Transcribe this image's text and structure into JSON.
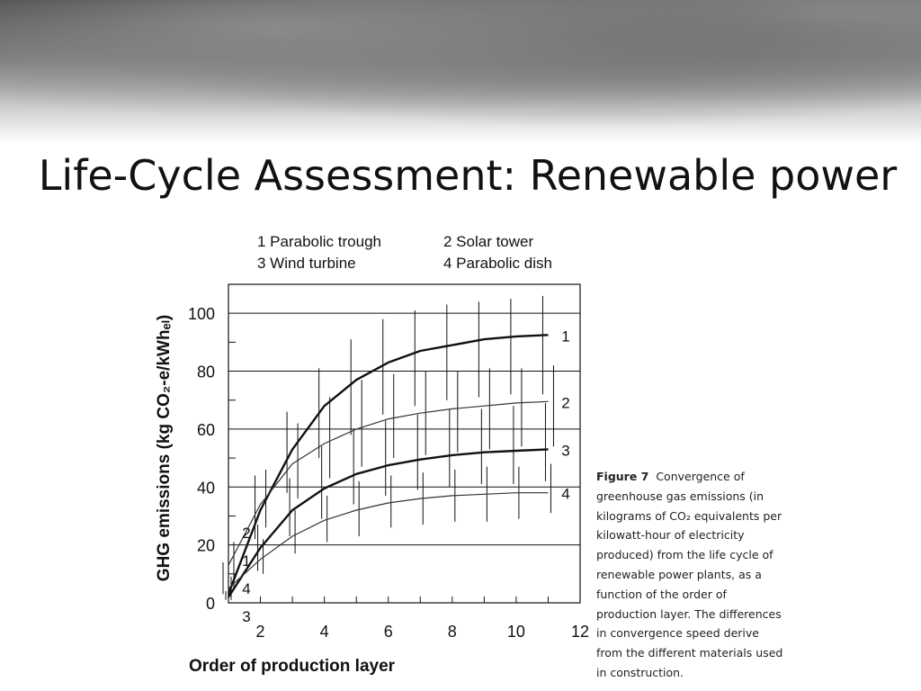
{
  "slide": {
    "title": "Life-Cycle Assessment: Renewable power"
  },
  "legend": [
    {
      "id": "1",
      "label": "1 Parabolic trough"
    },
    {
      "id": "2",
      "label": "2 Solar tower"
    },
    {
      "id": "3",
      "label": "3 Wind turbine"
    },
    {
      "id": "4",
      "label": "4 Parabolic dish"
    }
  ],
  "caption": {
    "figure_label": "Figure 7",
    "text_line1": "Convergence of",
    "lines": [
      "greenhouse gas emissions (in",
      "kilograms of CO₂ equivalents per",
      "kilowatt-hour of electricity",
      "produced) from the life cycle of",
      "renewable power plants, as a",
      "function of the order of",
      "production layer. The differences",
      "in convergence speed derive",
      "from the different materials used",
      "in construction."
    ]
  },
  "chart_data": {
    "type": "line",
    "xlabel": "Order of production layer",
    "ylabel": "GHG emissions (kg CO₂-e/kWhₑₗ)",
    "xlim": [
      1,
      12
    ],
    "ylim": [
      0,
      110
    ],
    "xticks": [
      2,
      4,
      6,
      8,
      10,
      12
    ],
    "yticks": [
      0,
      20,
      40,
      60,
      80,
      100
    ],
    "grid": "horizontal",
    "left_labels_order": [
      "2",
      "1",
      "4",
      "3"
    ],
    "series": [
      {
        "name": "1",
        "color": "#111111",
        "weight": "bold",
        "x": [
          1,
          2,
          3,
          4,
          5,
          6,
          7,
          8,
          9,
          10,
          11
        ],
        "y": [
          3,
          32,
          53,
          68,
          77,
          83,
          87,
          89,
          91,
          92,
          92.5
        ],
        "err": [
          [
            3,
            14
          ],
          [
            22,
            44
          ],
          [
            38,
            66
          ],
          [
            50,
            81
          ],
          [
            58,
            91
          ],
          [
            65,
            98
          ],
          [
            68,
            101
          ],
          [
            70,
            103
          ],
          [
            71,
            104
          ],
          [
            72,
            105
          ],
          [
            72,
            106
          ]
        ]
      },
      {
        "name": "2",
        "color": "#333333",
        "weight": "thin",
        "x": [
          1,
          2,
          3,
          4,
          5,
          6,
          7,
          8,
          9,
          10,
          11
        ],
        "y": [
          13,
          34,
          48,
          55,
          60,
          63.5,
          65.5,
          67,
          68,
          69,
          69.5
        ],
        "err": [
          [
            5,
            21
          ],
          [
            26,
            46
          ],
          [
            36,
            62
          ],
          [
            43,
            71
          ],
          [
            47,
            77
          ],
          [
            50,
            79
          ],
          [
            51,
            80
          ],
          [
            52,
            80
          ],
          [
            53,
            81
          ],
          [
            54,
            81
          ],
          [
            54,
            82
          ]
        ]
      },
      {
        "name": "3",
        "color": "#111111",
        "weight": "bold",
        "x": [
          1,
          2,
          3,
          4,
          5,
          6,
          7,
          8,
          9,
          10,
          11
        ],
        "y": [
          2,
          19,
          32,
          39.5,
          44.5,
          47.5,
          49.5,
          51,
          52,
          52.5,
          53
        ],
        "err": [
          [
            1,
            4
          ],
          [
            11,
            27
          ],
          [
            23,
            43
          ],
          [
            29,
            54
          ],
          [
            34,
            60
          ],
          [
            37,
            63
          ],
          [
            39,
            65
          ],
          [
            40,
            67
          ],
          [
            41,
            67
          ],
          [
            41,
            68
          ],
          [
            42,
            69
          ]
        ]
      },
      {
        "name": "4",
        "color": "#333333",
        "weight": "thin",
        "x": [
          1,
          2,
          3,
          4,
          5,
          6,
          7,
          8,
          9,
          10,
          11
        ],
        "y": [
          5,
          15,
          23,
          28.5,
          32,
          34.5,
          36,
          37,
          37.5,
          38,
          38
        ],
        "err": [
          [
            1,
            9
          ],
          [
            10,
            22
          ],
          [
            17,
            32
          ],
          [
            21,
            37
          ],
          [
            23,
            42
          ],
          [
            26,
            44
          ],
          [
            27,
            45
          ],
          [
            28,
            46
          ],
          [
            28,
            47
          ],
          [
            29,
            47
          ],
          [
            31,
            48
          ]
        ]
      }
    ]
  }
}
